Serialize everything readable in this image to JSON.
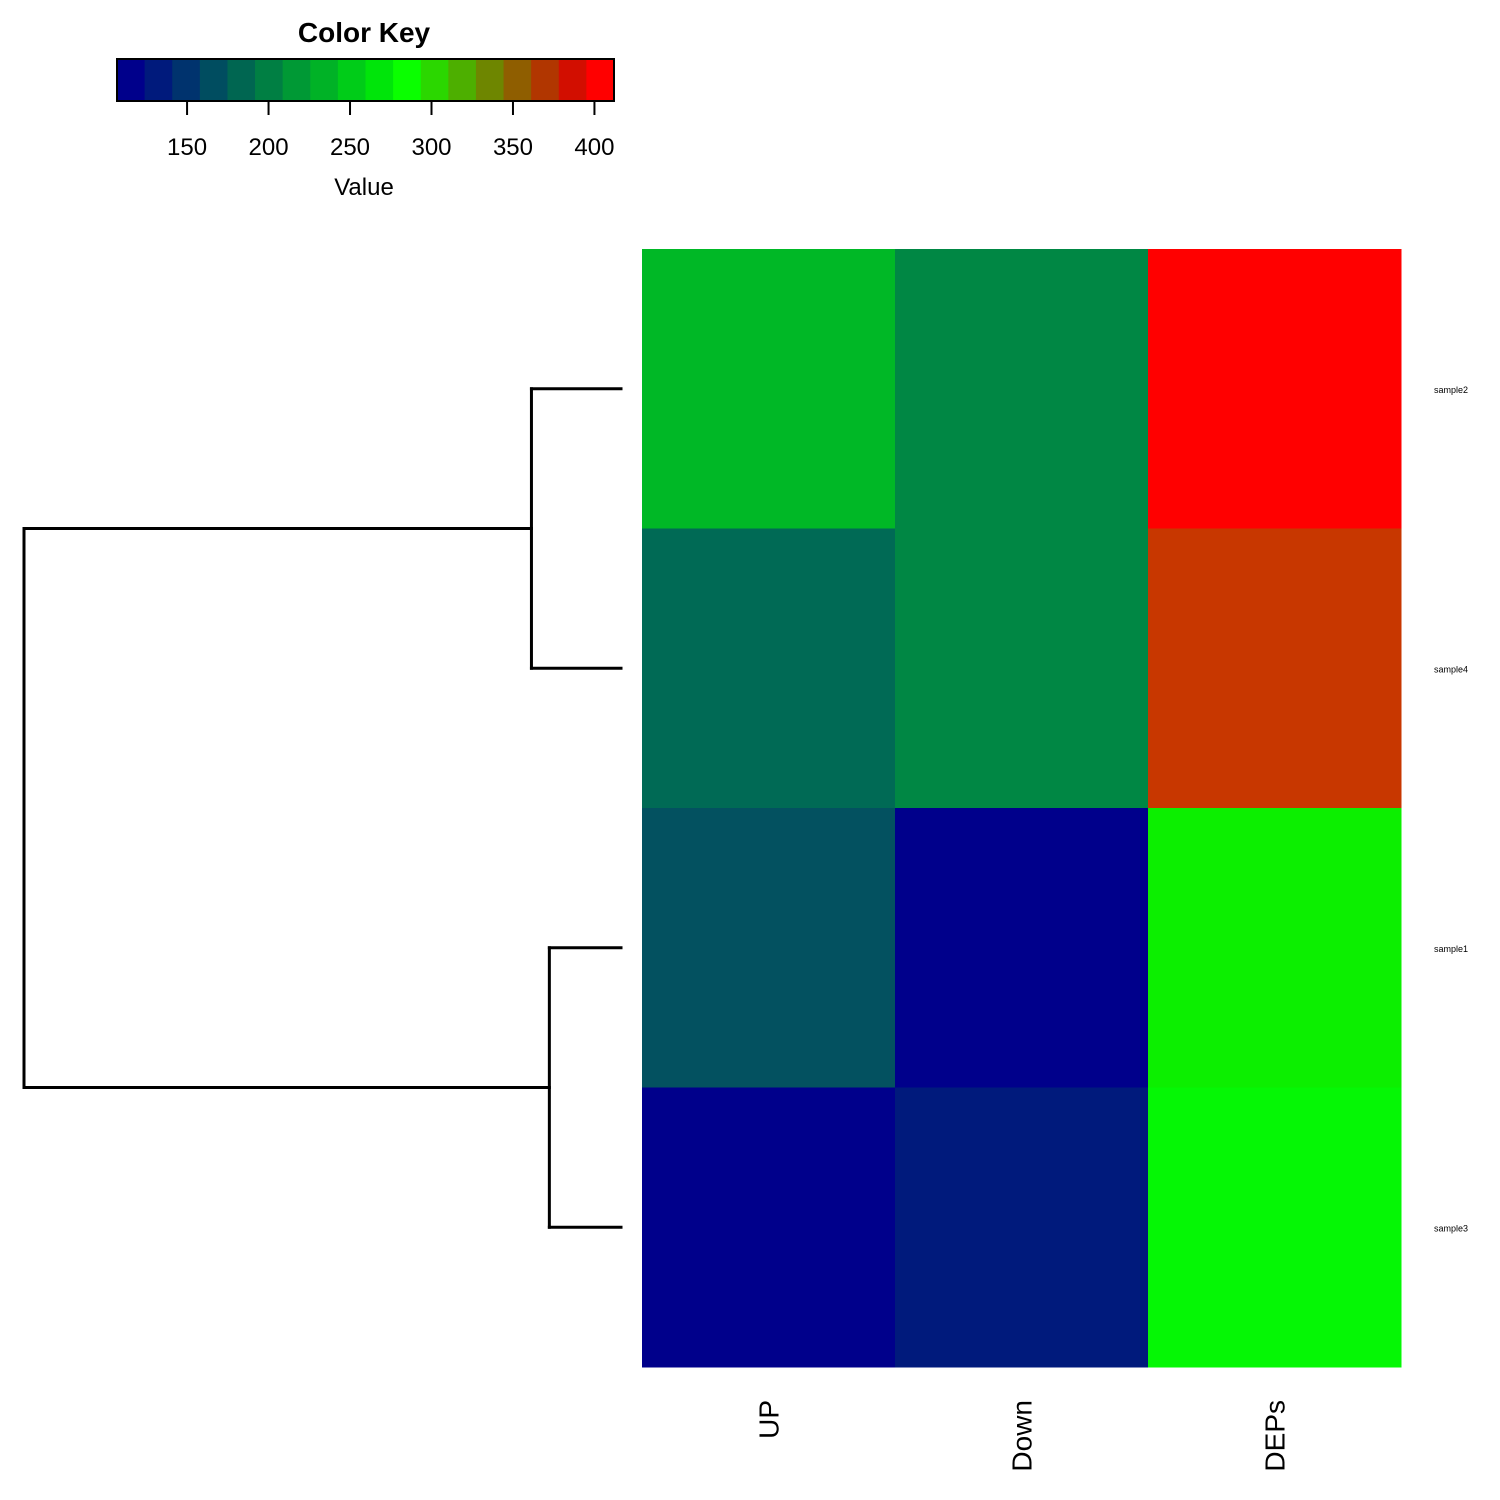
{
  "chart_data": {
    "type": "heatmap",
    "color_key": {
      "title": "Color Key",
      "xlabel": "Value",
      "range": [
        107,
        412
      ],
      "ticks": [
        150,
        200,
        250,
        300,
        350,
        400
      ],
      "tick_labels": [
        "150",
        "200",
        "250",
        "300",
        "350",
        "400"
      ],
      "colors": [
        "#00008B",
        "#001A7C",
        "#00336E",
        "#004D60",
        "#006651",
        "#007F43",
        "#009935",
        "#00B226",
        "#00CC18",
        "#00E50A",
        "#0AFF00",
        "#2BD700",
        "#4DAF00",
        "#6E8600",
        "#8F5E00",
        "#B13600",
        "#D20E00",
        "#FF0000"
      ]
    },
    "rows": [
      "sample2",
      "sample4",
      "sample1",
      "sample3"
    ],
    "columns": [
      "UP",
      "Down",
      "DEPs"
    ],
    "values": [
      [
        232,
        208,
        405
      ],
      [
        182,
        208,
        375
      ],
      [
        167,
        113,
        267
      ],
      [
        112,
        123,
        262
      ]
    ],
    "cell_colors": [
      [
        "#00B826",
        "#008744",
        "#FF0000"
      ],
      [
        "#006A55",
        "#008744",
        "#C83700"
      ],
      [
        "#035160",
        "#00008B",
        "#0CEF00"
      ],
      [
        "#00008B",
        "#001A7C",
        "#05F705"
      ]
    ],
    "dendrogram": {
      "merges": [
        {
          "left": "sample2",
          "right": "sample4",
          "height": 0.15
        },
        {
          "left": "sample1",
          "right": "sample3",
          "height": 0.12
        },
        {
          "left": "cluster(sample2,sample4)",
          "right": "cluster(sample1,sample3)",
          "height": 1.0
        }
      ]
    }
  }
}
